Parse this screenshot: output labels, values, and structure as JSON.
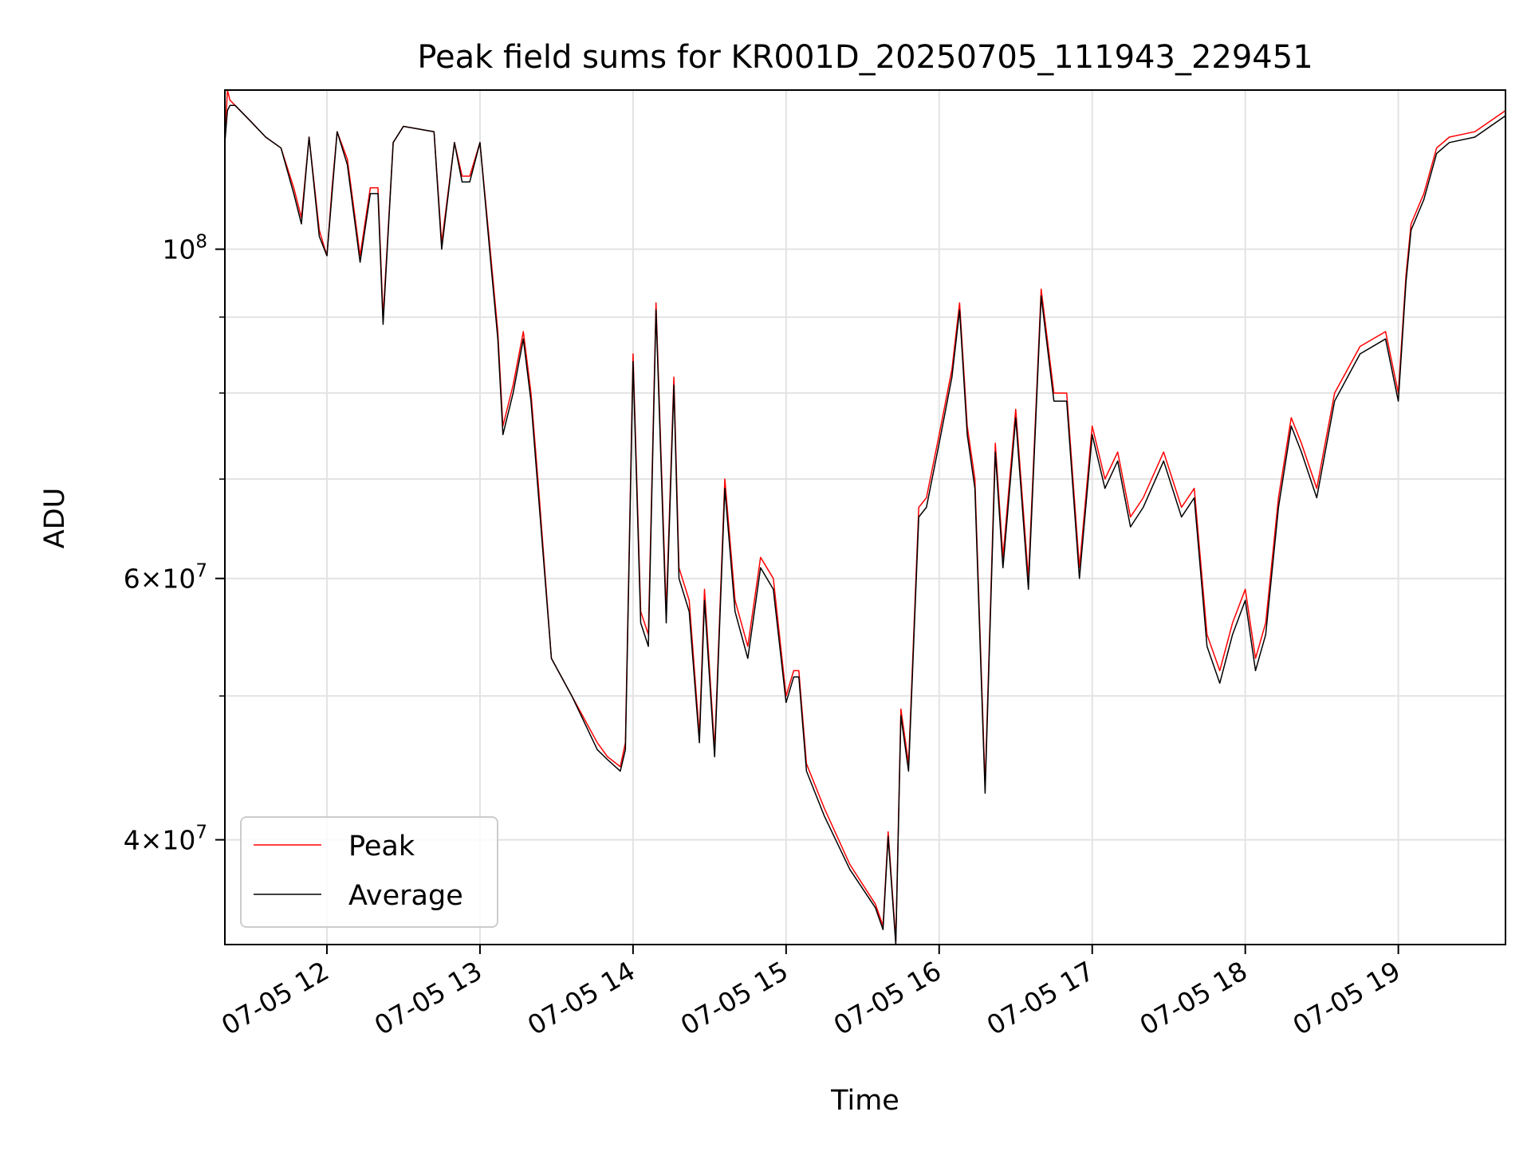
{
  "chart_data": {
    "type": "line",
    "title": "Peak field sums for KR001D_20250705_111943_229451",
    "xlabel": "Time",
    "ylabel": "ADU",
    "yscale": "log",
    "grid": true,
    "legend_position": "lower-left",
    "xlim": [
      "2025-07-05 11:20",
      "2025-07-05 19:42"
    ],
    "ylim": [
      34000000,
      128000000
    ],
    "x_ticks": [
      {
        "value": "2025-07-05 12:00",
        "label": "07-05 12"
      },
      {
        "value": "2025-07-05 13:00",
        "label": "07-05 13"
      },
      {
        "value": "2025-07-05 14:00",
        "label": "07-05 14"
      },
      {
        "value": "2025-07-05 15:00",
        "label": "07-05 15"
      },
      {
        "value": "2025-07-05 16:00",
        "label": "07-05 16"
      },
      {
        "value": "2025-07-05 17:00",
        "label": "07-05 17"
      },
      {
        "value": "2025-07-05 18:00",
        "label": "07-05 18"
      },
      {
        "value": "2025-07-05 19:00",
        "label": "07-05 19"
      }
    ],
    "y_major_ticks": [
      {
        "value": 40000000,
        "base": "4",
        "exp": "7"
      },
      {
        "value": 60000000,
        "base": "6",
        "exp": "7"
      },
      {
        "value": 100000000,
        "base": "",
        "exp": "8"
      }
    ],
    "y_minor_ticks": [
      50000000,
      70000000,
      80000000,
      90000000
    ],
    "series": [
      {
        "name": "Peak",
        "color": "#ff0000",
        "x": [
          "2025-07-05 11:20",
          "2025-07-05 11:21",
          "2025-07-05 11:22",
          "2025-07-05 11:24",
          "2025-07-05 11:30",
          "2025-07-05 11:36",
          "2025-07-05 11:42",
          "2025-07-05 11:47",
          "2025-07-05 11:50",
          "2025-07-05 11:53",
          "2025-07-05 11:57",
          "2025-07-05 12:00",
          "2025-07-05 12:02",
          "2025-07-05 12:04",
          "2025-07-05 12:08",
          "2025-07-05 12:13",
          "2025-07-05 12:17",
          "2025-07-05 12:20",
          "2025-07-05 12:22",
          "2025-07-05 12:26",
          "2025-07-05 12:30",
          "2025-07-05 12:42",
          "2025-07-05 12:45",
          "2025-07-05 12:50",
          "2025-07-05 12:53",
          "2025-07-05 12:56",
          "2025-07-05 13:00",
          "2025-07-05 13:04",
          "2025-07-05 13:07",
          "2025-07-05 13:09",
          "2025-07-05 13:13",
          "2025-07-05 13:17",
          "2025-07-05 13:20",
          "2025-07-05 13:23",
          "2025-07-05 13:28",
          "2025-07-05 13:36",
          "2025-07-05 13:46",
          "2025-07-05 13:50",
          "2025-07-05 13:55",
          "2025-07-05 13:57",
          "2025-07-05 14:00",
          "2025-07-05 14:03",
          "2025-07-05 14:06",
          "2025-07-05 14:09",
          "2025-07-05 14:13",
          "2025-07-05 14:16",
          "2025-07-05 14:18",
          "2025-07-05 14:22",
          "2025-07-05 14:26",
          "2025-07-05 14:28",
          "2025-07-05 14:32",
          "2025-07-05 14:36",
          "2025-07-05 14:40",
          "2025-07-05 14:45",
          "2025-07-05 14:50",
          "2025-07-05 14:55",
          "2025-07-05 15:00",
          "2025-07-05 15:03",
          "2025-07-05 15:05",
          "2025-07-05 15:08",
          "2025-07-05 15:15",
          "2025-07-05 15:25",
          "2025-07-05 15:35",
          "2025-07-05 15:38",
          "2025-07-05 15:40",
          "2025-07-05 15:43",
          "2025-07-05 15:45",
          "2025-07-05 15:48",
          "2025-07-05 15:52",
          "2025-07-05 15:55",
          "2025-07-05 16:00",
          "2025-07-05 16:05",
          "2025-07-05 16:08",
          "2025-07-05 16:11",
          "2025-07-05 16:14",
          "2025-07-05 16:18",
          "2025-07-05 16:22",
          "2025-07-05 16:25",
          "2025-07-05 16:30",
          "2025-07-05 16:35",
          "2025-07-05 16:40",
          "2025-07-05 16:45",
          "2025-07-05 16:50",
          "2025-07-05 16:55",
          "2025-07-05 17:00",
          "2025-07-05 17:05",
          "2025-07-05 17:10",
          "2025-07-05 17:15",
          "2025-07-05 17:20",
          "2025-07-05 17:28",
          "2025-07-05 17:35",
          "2025-07-05 17:40",
          "2025-07-05 17:45",
          "2025-07-05 17:50",
          "2025-07-05 17:55",
          "2025-07-05 18:00",
          "2025-07-05 18:04",
          "2025-07-05 18:08",
          "2025-07-05 18:13",
          "2025-07-05 18:18",
          "2025-07-05 18:22",
          "2025-07-05 18:28",
          "2025-07-05 18:35",
          "2025-07-05 18:45",
          "2025-07-05 18:55",
          "2025-07-05 19:00",
          "2025-07-05 19:03",
          "2025-07-05 19:05",
          "2025-07-05 19:10",
          "2025-07-05 19:15",
          "2025-07-05 19:20",
          "2025-07-05 19:30",
          "2025-07-05 19:42"
        ],
        "values": [
          118000000,
          128000000,
          126000000,
          125000000,
          122000000,
          119000000,
          117000000,
          110000000,
          105000000,
          119000000,
          103000000,
          99000000,
          110000000,
          120000000,
          115000000,
          99000000,
          110000000,
          110000000,
          90000000,
          118000000,
          121000000,
          120000000,
          101000000,
          118000000,
          112000000,
          112000000,
          118000000,
          100000000,
          88000000,
          76000000,
          81000000,
          88000000,
          80000000,
          69000000,
          53000000,
          50000000,
          46500000,
          45500000,
          44800000,
          46500000,
          85000000,
          57000000,
          55000000,
          92000000,
          57000000,
          82000000,
          61000000,
          58000000,
          47000000,
          59000000,
          46000000,
          70000000,
          58000000,
          54000000,
          62000000,
          60000000,
          50000000,
          52000000,
          52000000,
          45000000,
          42000000,
          38500000,
          36200000,
          35000000,
          40500000,
          34200000,
          49000000,
          45000000,
          67000000,
          68000000,
          75000000,
          83000000,
          92000000,
          76000000,
          70000000,
          43500000,
          74000000,
          62000000,
          78000000,
          60000000,
          94000000,
          80000000,
          80000000,
          61000000,
          76000000,
          70000000,
          73000000,
          66000000,
          68000000,
          73000000,
          67000000,
          69000000,
          55000000,
          52000000,
          56000000,
          59000000,
          53000000,
          56000000,
          68000000,
          77000000,
          74000000,
          69000000,
          80000000,
          86000000,
          88000000,
          80000000,
          96000000,
          104000000,
          109000000,
          117000000,
          119000000,
          120000000,
          124000000
        ]
      },
      {
        "name": "Average",
        "color": "#000000",
        "x": [
          "2025-07-05 11:20",
          "2025-07-05 11:21",
          "2025-07-05 11:22",
          "2025-07-05 11:24",
          "2025-07-05 11:30",
          "2025-07-05 11:36",
          "2025-07-05 11:42",
          "2025-07-05 11:47",
          "2025-07-05 11:50",
          "2025-07-05 11:53",
          "2025-07-05 11:57",
          "2025-07-05 12:00",
          "2025-07-05 12:02",
          "2025-07-05 12:04",
          "2025-07-05 12:08",
          "2025-07-05 12:13",
          "2025-07-05 12:17",
          "2025-07-05 12:20",
          "2025-07-05 12:22",
          "2025-07-05 12:26",
          "2025-07-05 12:30",
          "2025-07-05 12:42",
          "2025-07-05 12:45",
          "2025-07-05 12:50",
          "2025-07-05 12:53",
          "2025-07-05 12:56",
          "2025-07-05 13:00",
          "2025-07-05 13:04",
          "2025-07-05 13:07",
          "2025-07-05 13:09",
          "2025-07-05 13:13",
          "2025-07-05 13:17",
          "2025-07-05 13:20",
          "2025-07-05 13:23",
          "2025-07-05 13:28",
          "2025-07-05 13:36",
          "2025-07-05 13:46",
          "2025-07-05 13:50",
          "2025-07-05 13:55",
          "2025-07-05 13:57",
          "2025-07-05 14:00",
          "2025-07-05 14:03",
          "2025-07-05 14:06",
          "2025-07-05 14:09",
          "2025-07-05 14:13",
          "2025-07-05 14:16",
          "2025-07-05 14:18",
          "2025-07-05 14:22",
          "2025-07-05 14:26",
          "2025-07-05 14:28",
          "2025-07-05 14:32",
          "2025-07-05 14:36",
          "2025-07-05 14:40",
          "2025-07-05 14:45",
          "2025-07-05 14:50",
          "2025-07-05 14:55",
          "2025-07-05 15:00",
          "2025-07-05 15:03",
          "2025-07-05 15:05",
          "2025-07-05 15:08",
          "2025-07-05 15:15",
          "2025-07-05 15:25",
          "2025-07-05 15:35",
          "2025-07-05 15:38",
          "2025-07-05 15:40",
          "2025-07-05 15:43",
          "2025-07-05 15:45",
          "2025-07-05 15:48",
          "2025-07-05 15:52",
          "2025-07-05 15:55",
          "2025-07-05 16:00",
          "2025-07-05 16:05",
          "2025-07-05 16:08",
          "2025-07-05 16:11",
          "2025-07-05 16:14",
          "2025-07-05 16:18",
          "2025-07-05 16:22",
          "2025-07-05 16:25",
          "2025-07-05 16:30",
          "2025-07-05 16:35",
          "2025-07-05 16:40",
          "2025-07-05 16:45",
          "2025-07-05 16:50",
          "2025-07-05 16:55",
          "2025-07-05 17:00",
          "2025-07-05 17:05",
          "2025-07-05 17:10",
          "2025-07-05 17:15",
          "2025-07-05 17:20",
          "2025-07-05 17:28",
          "2025-07-05 17:35",
          "2025-07-05 17:40",
          "2025-07-05 17:45",
          "2025-07-05 17:50",
          "2025-07-05 17:55",
          "2025-07-05 18:00",
          "2025-07-05 18:04",
          "2025-07-05 18:08",
          "2025-07-05 18:13",
          "2025-07-05 18:18",
          "2025-07-05 18:22",
          "2025-07-05 18:28",
          "2025-07-05 18:35",
          "2025-07-05 18:45",
          "2025-07-05 18:55",
          "2025-07-05 19:00",
          "2025-07-05 19:03",
          "2025-07-05 19:05",
          "2025-07-05 19:10",
          "2025-07-05 19:15",
          "2025-07-05 19:20",
          "2025-07-05 19:30",
          "2025-07-05 19:42"
        ],
        "values": [
          118000000,
          124000000,
          125000000,
          125000000,
          122000000,
          119000000,
          117000000,
          109000000,
          104000000,
          119000000,
          102000000,
          99000000,
          109000000,
          120000000,
          114000000,
          98000000,
          109000000,
          109000000,
          89000000,
          118000000,
          121000000,
          120000000,
          100000000,
          118000000,
          111000000,
          111000000,
          118000000,
          99000000,
          87000000,
          75000000,
          80000000,
          87000000,
          79000000,
          68000000,
          53000000,
          50000000,
          46000000,
          45300000,
          44500000,
          46000000,
          84000000,
          56000000,
          54000000,
          91000000,
          56000000,
          81000000,
          60000000,
          57000000,
          46500000,
          58000000,
          45500000,
          69000000,
          57000000,
          53000000,
          61000000,
          59000000,
          49500000,
          51500000,
          51500000,
          44500000,
          41500000,
          38200000,
          36000000,
          34800000,
          40200000,
          34000000,
          48500000,
          44500000,
          66000000,
          67000000,
          74000000,
          82000000,
          91000000,
          75000000,
          69000000,
          43000000,
          73000000,
          61000000,
          77000000,
          59000000,
          93000000,
          79000000,
          79000000,
          60000000,
          75000000,
          69000000,
          72000000,
          65000000,
          67000000,
          72000000,
          66000000,
          68000000,
          54000000,
          51000000,
          55000000,
          58000000,
          52000000,
          55000000,
          67000000,
          76000000,
          73000000,
          68000000,
          79000000,
          85000000,
          87000000,
          79000000,
          95000000,
          103000000,
          108000000,
          116000000,
          118000000,
          119000000,
          123000000
        ]
      }
    ]
  }
}
